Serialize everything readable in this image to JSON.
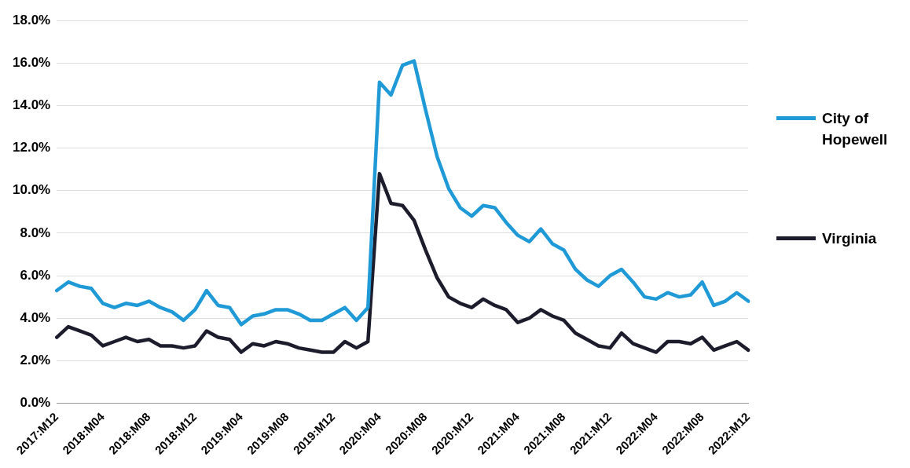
{
  "chart_data": {
    "type": "line",
    "categories": [
      "2017:M12",
      null,
      null,
      null,
      "2018:M04",
      null,
      null,
      null,
      "2018:M08",
      null,
      null,
      null,
      "2018:M12",
      null,
      null,
      null,
      "2019:M04",
      null,
      null,
      null,
      "2019:M08",
      null,
      null,
      null,
      "2019:M12",
      null,
      null,
      null,
      "2020:M04",
      null,
      null,
      null,
      "2020:M08",
      null,
      null,
      null,
      "2020:M12",
      null,
      null,
      null,
      "2021:M04",
      null,
      null,
      null,
      "2021:M08",
      null,
      null,
      null,
      "2021:M12",
      null,
      null,
      null,
      "2022:M04",
      null,
      null,
      null,
      "2022:M08",
      null,
      null,
      null,
      "2022:M12"
    ],
    "series": [
      {
        "name": "City of Hopewell",
        "color": "#1f9ad6",
        "values": [
          5.3,
          5.7,
          5.5,
          5.4,
          4.7,
          4.5,
          4.7,
          4.6,
          4.8,
          4.5,
          4.3,
          3.9,
          4.4,
          5.3,
          4.6,
          4.5,
          3.7,
          4.1,
          4.2,
          4.4,
          4.4,
          4.2,
          3.9,
          3.9,
          4.2,
          4.5,
          3.9,
          4.5,
          15.1,
          14.5,
          15.9,
          16.1,
          13.8,
          11.6,
          10.1,
          9.2,
          8.8,
          9.3,
          9.2,
          8.5,
          7.9,
          7.6,
          8.2,
          7.5,
          7.2,
          6.3,
          5.8,
          5.5,
          6.0,
          6.3,
          5.7,
          5.0,
          4.9,
          5.2,
          5.0,
          5.1,
          5.7,
          4.6,
          4.8,
          5.2,
          4.8
        ]
      },
      {
        "name": "Virginia",
        "color": "#1c1c2c",
        "values": [
          3.1,
          3.6,
          3.4,
          3.2,
          2.7,
          2.9,
          3.1,
          2.9,
          3.0,
          2.7,
          2.7,
          2.6,
          2.7,
          3.4,
          3.1,
          3.0,
          2.4,
          2.8,
          2.7,
          2.9,
          2.8,
          2.6,
          2.5,
          2.4,
          2.4,
          2.9,
          2.6,
          2.9,
          10.8,
          9.4,
          9.3,
          8.6,
          7.2,
          5.9,
          5.0,
          4.7,
          4.5,
          4.9,
          4.6,
          4.4,
          3.8,
          4.0,
          4.4,
          4.1,
          3.9,
          3.3,
          3.0,
          2.7,
          2.6,
          3.3,
          2.8,
          2.6,
          2.4,
          2.9,
          2.9,
          2.8,
          3.1,
          2.5,
          2.7,
          2.9,
          2.5
        ]
      }
    ],
    "ylim": [
      0,
      18
    ],
    "yticks": [
      {
        "value": 0,
        "label": "0.0%"
      },
      {
        "value": 2,
        "label": "2.0%"
      },
      {
        "value": 4,
        "label": "4.0%"
      },
      {
        "value": 6,
        "label": "6.0%"
      },
      {
        "value": 8,
        "label": "8.0%"
      },
      {
        "value": 10,
        "label": "10.0%"
      },
      {
        "value": 12,
        "label": "12.0%"
      },
      {
        "value": 14,
        "label": "14.0%"
      },
      {
        "value": 16,
        "label": "16.0%"
      },
      {
        "value": 18,
        "label": "18.0%"
      }
    ],
    "grid": "y",
    "legend": "right",
    "marker": "none",
    "line_style": "solid"
  }
}
